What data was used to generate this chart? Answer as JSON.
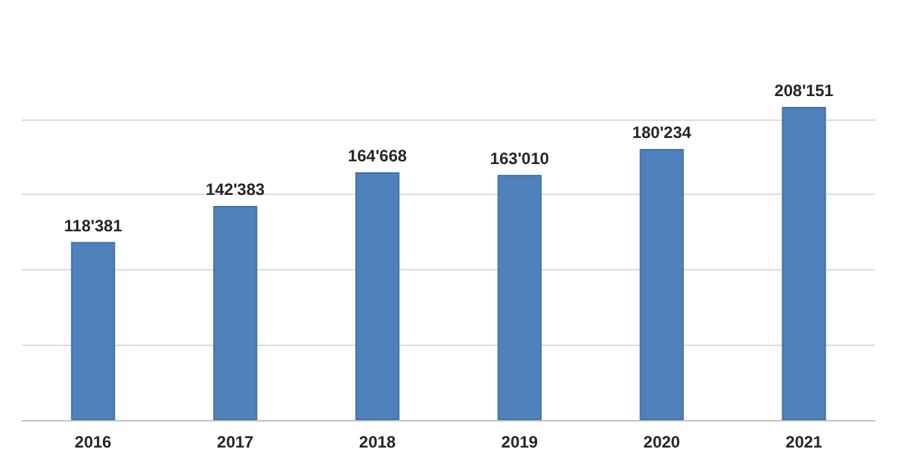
{
  "chart_data": {
    "type": "bar",
    "categories": [
      "2016",
      "2017",
      "2018",
      "2019",
      "2020",
      "2021"
    ],
    "values": [
      118381,
      142383,
      164668,
      163010,
      180234,
      208151
    ],
    "value_labels": [
      "118'381",
      "142'383",
      "164'668",
      "163'010",
      "180'234",
      "208'151"
    ],
    "color": "#4f81bd",
    "yticks": [
      {
        "value": 0,
        "label": null
      },
      {
        "value": 50000,
        "label": null
      },
      {
        "value": 100000,
        "label": null
      },
      {
        "value": 150000,
        "label": null
      },
      {
        "value": 200000,
        "label": null
      }
    ],
    "grid": "y",
    "tick_labels": "x"
  }
}
